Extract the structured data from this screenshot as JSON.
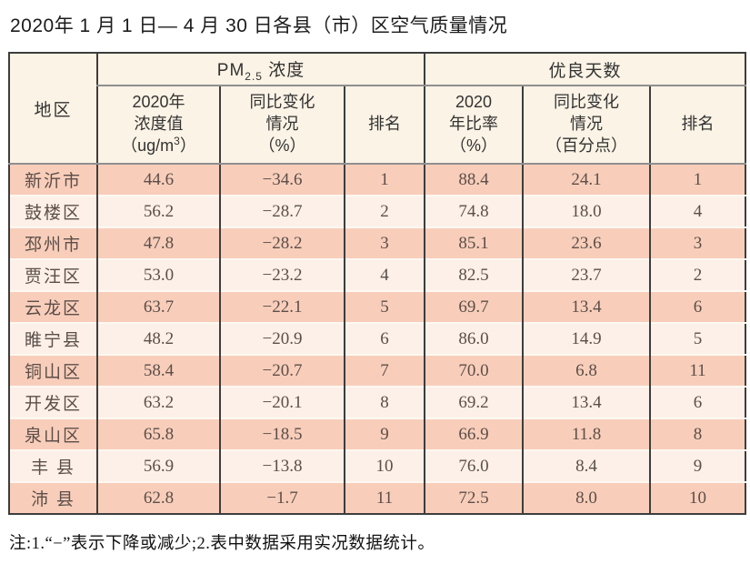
{
  "title": "2020年 1 月 1 日— 4 月 30 日各县（市）区空气质量情况",
  "table": {
    "header": {
      "region": "地区",
      "pm25": {
        "prefix": "PM",
        "sub": "2.5",
        "suffix": " 浓度"
      },
      "good_days": "优良天数",
      "pm_value": {
        "line1": "2020年",
        "line2": "浓度值",
        "line3_prefix": "（ug/m",
        "line3_sup": "3",
        "line3_suffix": "）"
      },
      "pm_change": {
        "line1": "同比变化",
        "line2": "情况",
        "line3": "（%）"
      },
      "pm_rank": "排名",
      "ratio": {
        "line1": "2020",
        "line2": "年比率",
        "line3": "（%）"
      },
      "good_change": {
        "line1": "同比变化",
        "line2": "情况",
        "line3": "（百分点）"
      },
      "good_rank": "排名"
    },
    "rows": [
      [
        "新沂市",
        "44.6",
        "−34.6",
        "1",
        "88.4",
        "24.1",
        "1"
      ],
      [
        "鼓楼区",
        "56.2",
        "−28.7",
        "2",
        "74.8",
        "18.0",
        "4"
      ],
      [
        "邳州市",
        "47.8",
        "−28.2",
        "3",
        "85.1",
        "23.6",
        "3"
      ],
      [
        "贾汪区",
        "53.0",
        "−23.2",
        "4",
        "82.5",
        "23.7",
        "2"
      ],
      [
        "云龙区",
        "63.7",
        "−22.1",
        "5",
        "69.7",
        "13.4",
        "6"
      ],
      [
        "睢宁县",
        "48.2",
        "−20.9",
        "6",
        "86.0",
        "14.9",
        "5"
      ],
      [
        "铜山区",
        "58.4",
        "−20.7",
        "7",
        "70.0",
        "6.8",
        "11"
      ],
      [
        "开发区",
        "63.2",
        "−20.1",
        "8",
        "69.2",
        "13.4",
        "6"
      ],
      [
        "泉山区",
        "65.8",
        "−18.5",
        "9",
        "66.9",
        "11.8",
        "8"
      ],
      [
        "丰 县",
        "56.9",
        "−13.8",
        "10",
        "76.0",
        "8.4",
        "9"
      ],
      [
        "沛 县",
        "62.8",
        "−1.7",
        "11",
        "72.5",
        "8.0",
        "10"
      ]
    ]
  },
  "note": "注:1.“−”表示下降或减少;2.表中数据采用实况数据统计。",
  "colors": {
    "row_odd": "#f8cebb",
    "row_even": "#fcf0e8",
    "header_bg": "#fbf3e5",
    "border_dark": "#3d3d3d",
    "border_gray": "#8f8f8f",
    "row_sep": "#fdf8f2",
    "text_data": "#5c4e48",
    "text_header": "#333333",
    "text_title": "#1c1c1c"
  }
}
